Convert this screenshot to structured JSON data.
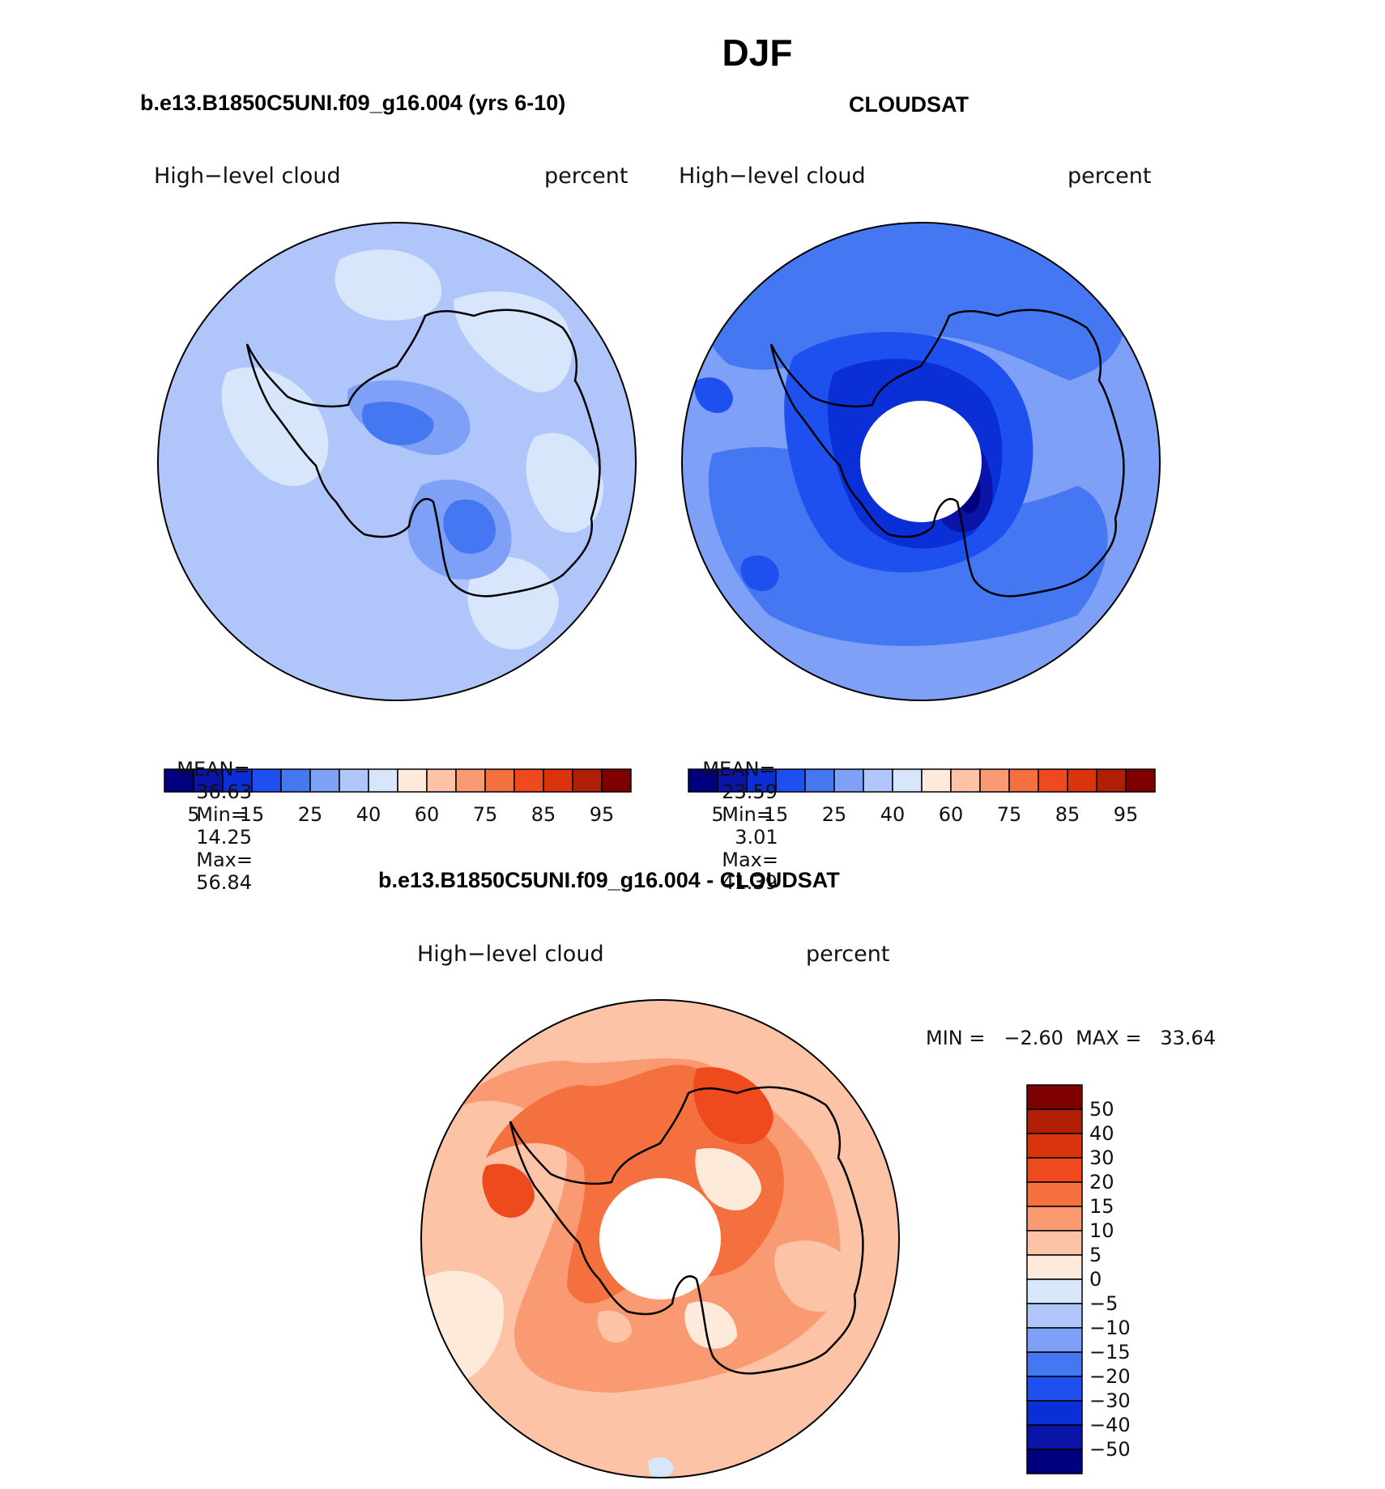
{
  "figure": {
    "season": "DJF",
    "panels": [
      {
        "title": "b.e13.B1850C5UNI.f09_g16.004 (yrs 6-10)",
        "variable": "High−level cloud",
        "units": "percent",
        "stats": {
          "mean_label": "MEAN=",
          "mean": "36.63",
          "min_label": "Min=",
          "min": "14.25",
          "max_label": "Max=",
          "max": "56.84"
        },
        "colorbar_labels": [
          "5",
          "15",
          "25",
          "40",
          "60",
          "75",
          "85",
          "95"
        ]
      },
      {
        "title": "CLOUDSAT",
        "variable": "High−level cloud",
        "units": "percent",
        "stats": {
          "mean_label": "MEAN=",
          "mean": "23.59",
          "min_label": "Min=",
          "min": "3.01",
          "max_label": "Max=",
          "max": "41.39"
        },
        "colorbar_labels": [
          "5",
          "15",
          "25",
          "40",
          "60",
          "75",
          "85",
          "95"
        ]
      }
    ],
    "difference": {
      "title": "b.e13.B1850C5UNI.f09_g16.004 - CLOUDSAT",
      "variable": "High−level cloud",
      "units": "percent",
      "minmax": "MIN =   −2.60  MAX =   33.64",
      "colorbar_labels": [
        "50",
        "40",
        "30",
        "20",
        "15",
        "10",
        "5",
        "0",
        "−5",
        "−10",
        "−15",
        "−20",
        "−30",
        "−40",
        "−50"
      ]
    }
  },
  "colors": {
    "scale": [
      "#00007f",
      "#0a14a8",
      "#0a2fd6",
      "#1e50f0",
      "#4677f2",
      "#7ea0f6",
      "#b0c6fa",
      "#d7e6fb",
      "#feeadb",
      "#fdc3a6",
      "#fa9a72",
      "#f5703f",
      "#ee4a1e",
      "#d9340c",
      "#b01e06",
      "#7f0000"
    ],
    "diff_scale_top_to_bottom": [
      "#7f0000",
      "#b01e06",
      "#d9340c",
      "#ee4a1e",
      "#f5703f",
      "#fa9a72",
      "#fdc3a6",
      "#feeadb",
      "#d7e6fb",
      "#b0c6fa",
      "#7ea0f6",
      "#4677f2",
      "#1e50f0",
      "#0a2fd6",
      "#0a14a8",
      "#00007f"
    ],
    "model_field": [
      "#b0c6fa",
      "#d7e6fb",
      "#7ea0f6",
      "#4677f2"
    ],
    "obs_field": [
      "#4677f2",
      "#1e50f0",
      "#7ea0f6",
      "#0a2fd6",
      "#0a14a8",
      "#00007f"
    ],
    "diff_field": [
      "#fdc3a6",
      "#fa9a72",
      "#f5703f",
      "#ee4a1e",
      "#feeadb"
    ]
  }
}
